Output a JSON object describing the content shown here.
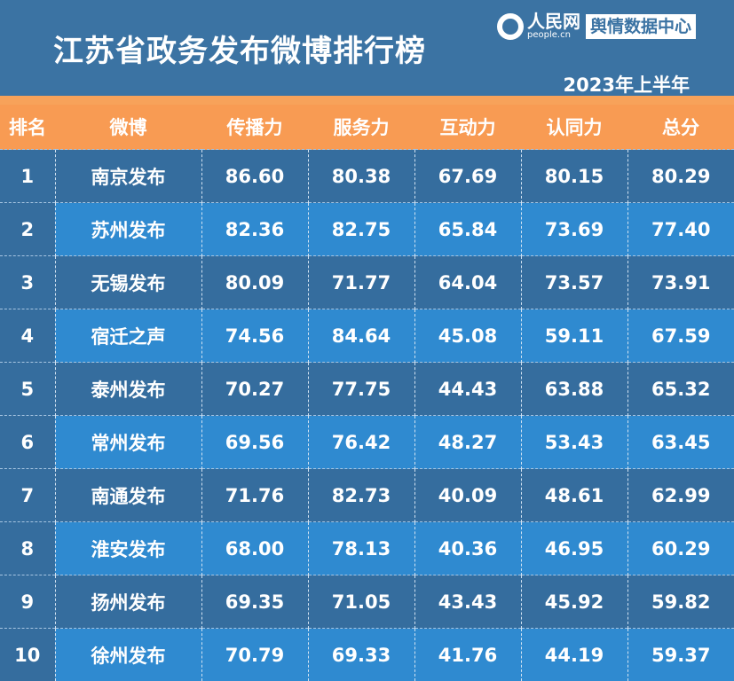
{
  "header": {
    "title": "江苏省政务发布微博排行榜",
    "subtitle": "2023年上半年",
    "logo_name": "人民网",
    "logo_url": "people.cn",
    "logo_badge": "舆情数据中心"
  },
  "table": {
    "columns": [
      "排名",
      "微博",
      "传播力",
      "服务力",
      "互动力",
      "认同力",
      "总分"
    ],
    "rows": [
      [
        "1",
        "南京发布",
        "86.60",
        "80.38",
        "67.69",
        "80.15",
        "80.29"
      ],
      [
        "2",
        "苏州发布",
        "82.36",
        "82.75",
        "65.84",
        "73.69",
        "77.40"
      ],
      [
        "3",
        "无锡发布",
        "80.09",
        "71.77",
        "64.04",
        "73.57",
        "73.91"
      ],
      [
        "4",
        "宿迁之声",
        "74.56",
        "84.64",
        "45.08",
        "59.11",
        "67.59"
      ],
      [
        "5",
        "泰州发布",
        "70.27",
        "77.75",
        "44.43",
        "63.88",
        "65.32"
      ],
      [
        "6",
        "常州发布",
        "69.56",
        "76.42",
        "48.27",
        "53.43",
        "63.45"
      ],
      [
        "7",
        "南通发布",
        "71.76",
        "82.73",
        "40.09",
        "48.61",
        "62.99"
      ],
      [
        "8",
        "淮安发布",
        "68.00",
        "78.13",
        "40.36",
        "46.95",
        "60.29"
      ],
      [
        "9",
        "扬州发布",
        "69.35",
        "71.05",
        "43.43",
        "45.92",
        "59.82"
      ],
      [
        "10",
        "徐州发布",
        "70.79",
        "69.33",
        "41.76",
        "44.19",
        "59.37"
      ]
    ]
  }
}
